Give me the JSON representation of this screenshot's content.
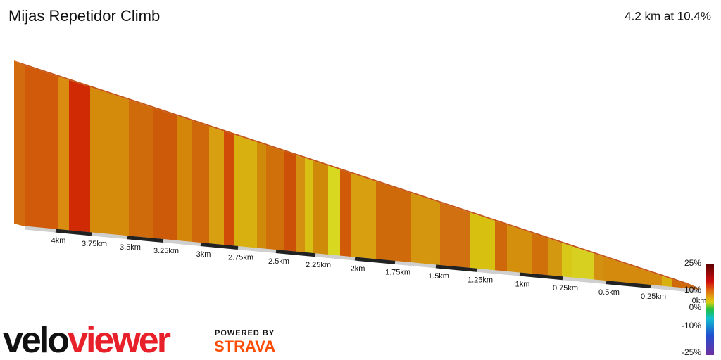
{
  "header": {
    "title": "Mijas Repetidor Climb",
    "summary": "4.2 km at 10.4%"
  },
  "distance_labels": [
    "4km",
    "3.75km",
    "3.5km",
    "3.25km",
    "3km",
    "2.75km",
    "2.5km",
    "2.25km",
    "2km",
    "1.75km",
    "1.5km",
    "1.25km",
    "1km",
    "0.75km",
    "0.5km",
    "0.25km",
    "0km"
  ],
  "legend": {
    "labels": [
      "25%",
      "10%",
      "0%",
      "-10%",
      "-25%"
    ]
  },
  "branding": {
    "logo": [
      "velo",
      "viewer"
    ],
    "powered_by": "POWERED BY",
    "strava": "STRAVA"
  }
}
